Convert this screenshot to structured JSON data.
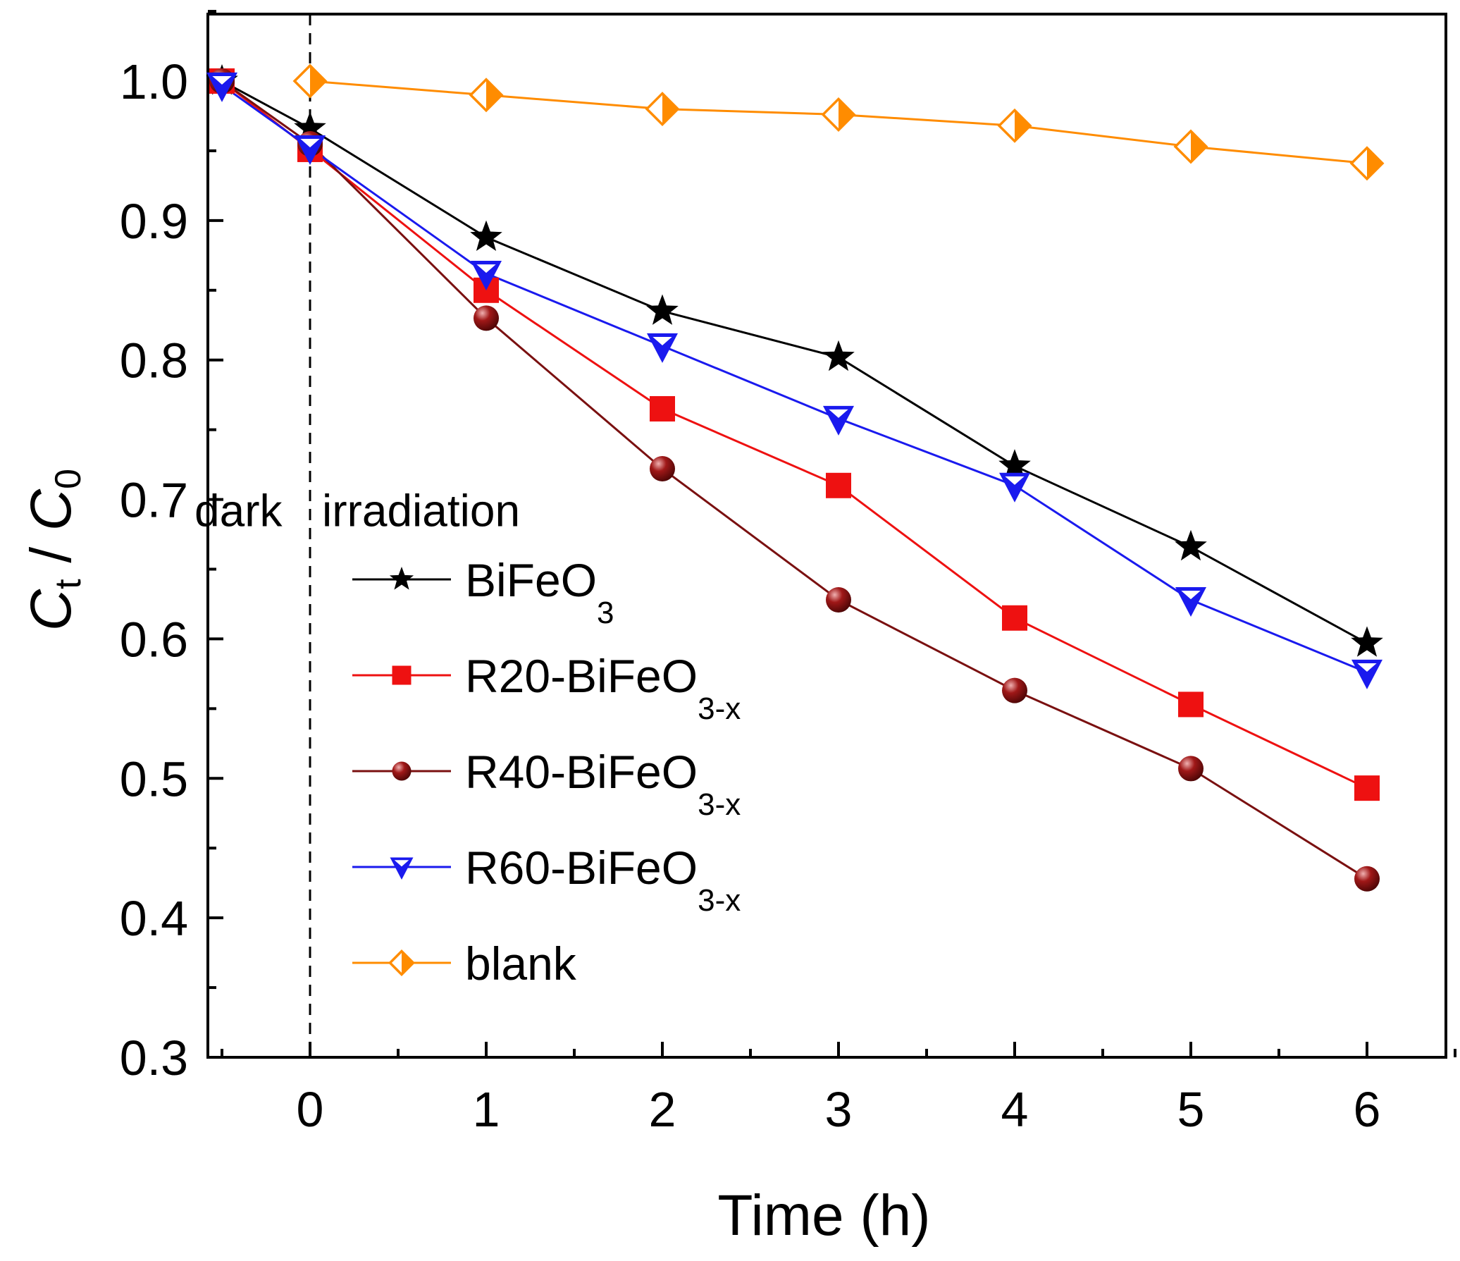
{
  "chart_data": {
    "type": "line",
    "title": "",
    "xlabel": "Time (h)",
    "ylabel": {
      "main": "C",
      "sub_top": "t",
      "sep": " / ",
      "main2": "C",
      "sub_bottom": "0"
    },
    "xlim": [
      -0.5,
      6.5
    ],
    "ylim": [
      0.3,
      1.05
    ],
    "x_ticks": [
      0,
      1,
      2,
      3,
      4,
      5,
      6
    ],
    "x_tick_labels": [
      "0",
      "1",
      "2",
      "3",
      "4",
      "5",
      "6"
    ],
    "y_ticks": [
      0.3,
      0.4,
      0.5,
      0.6,
      0.7,
      0.8,
      0.9,
      1.0
    ],
    "y_tick_labels": [
      "0.3",
      "0.4",
      "0.5",
      "0.6",
      "0.7",
      "0.8",
      "0.9",
      "1.0"
    ],
    "grid": false,
    "legend_position": "left-center",
    "annotations": [
      {
        "text": "dark",
        "x": -0.6,
        "y": 0.69
      },
      {
        "text": "irradiation",
        "x": 0.1,
        "y": 0.69
      }
    ],
    "vline": {
      "x": 0,
      "style": "dashed"
    },
    "series": [
      {
        "name": "BiFeO",
        "name_sub": "3",
        "color": "#000000",
        "marker": "star",
        "x": [
          -0.5,
          0,
          1,
          2,
          3,
          4,
          5,
          6
        ],
        "values": [
          1.0,
          0.966,
          0.888,
          0.835,
          0.802,
          0.724,
          0.666,
          0.597
        ]
      },
      {
        "name": "R20-BiFeO",
        "name_sub": "3-x",
        "color": "#ee1111",
        "marker": "square",
        "x": [
          -0.5,
          0,
          1,
          2,
          3,
          4,
          5,
          6
        ],
        "values": [
          1.0,
          0.951,
          0.85,
          0.765,
          0.71,
          0.615,
          0.553,
          0.493
        ]
      },
      {
        "name": "R40-BiFeO",
        "name_sub": "3-x",
        "color": "#7a1010",
        "marker": "circle",
        "x": [
          -0.5,
          0,
          1,
          2,
          3,
          4,
          5,
          6
        ],
        "values": [
          1.0,
          0.955,
          0.83,
          0.722,
          0.628,
          0.563,
          0.507,
          0.428
        ]
      },
      {
        "name": "R60-BiFeO",
        "name_sub": "3-x",
        "color": "#1a1aee",
        "marker": "triangle-down",
        "x": [
          -0.5,
          0,
          1,
          2,
          3,
          4,
          5,
          6
        ],
        "values": [
          0.997,
          0.952,
          0.862,
          0.81,
          0.758,
          0.71,
          0.628,
          0.576
        ]
      },
      {
        "name": "blank",
        "name_sub": "",
        "color": "#ff8c00",
        "marker": "diamond",
        "x": [
          0,
          1,
          2,
          3,
          4,
          5,
          6
        ],
        "values": [
          1.0,
          0.99,
          0.98,
          0.976,
          0.968,
          0.953,
          0.941
        ]
      }
    ]
  }
}
